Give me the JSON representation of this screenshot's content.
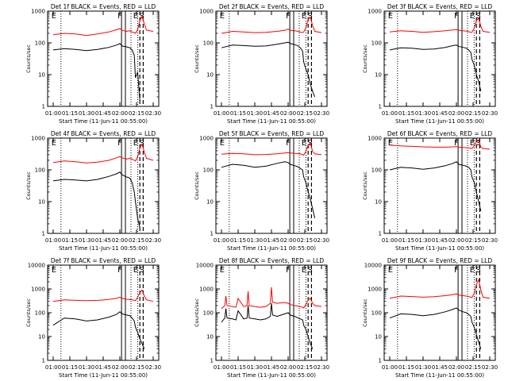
{
  "figure": {
    "ylabel": "Counts/sec",
    "xlabel": "Start Time (11-Jun-11 00:55:00)",
    "x_ticks": [
      "01:00",
      "01:15",
      "01:30",
      "01:45",
      "02:00",
      "02:15",
      "02:30"
    ],
    "x_tick_minutes": [
      60,
      75,
      90,
      105,
      120,
      135,
      150
    ],
    "y_tick_labels": [
      "1",
      "10",
      "100",
      "1000",
      "10000"
    ],
    "marker_labels": [
      "E",
      "F",
      "E",
      "S"
    ],
    "series_colors": {
      "events": "#000000",
      "lld": "#ff0000"
    }
  },
  "chart_data": [
    {
      "type": "line",
      "title": "Det 1f BLACK = Events, RED = LLD",
      "yscale": "log",
      "ylim": [
        1,
        1000
      ],
      "x_minutes": [
        60,
        70,
        80,
        90,
        100,
        110,
        117,
        120,
        122,
        126,
        129,
        131,
        133,
        134,
        136,
        138,
        140,
        142,
        144,
        150
      ],
      "series": [
        {
          "name": "Events",
          "values": [
            60,
            66,
            62,
            57,
            62,
            72,
            85,
            95,
            80,
            75,
            70,
            60,
            40,
            8,
            12,
            1.5,
            null,
            null,
            null,
            null
          ]
        },
        {
          "name": "LLD",
          "values": [
            180,
            200,
            190,
            170,
            190,
            220,
            260,
            280,
            250,
            230,
            240,
            220,
            210,
            200,
            260,
            500,
            700,
            400,
            250,
            230
          ]
        }
      ],
      "markers": {
        "solid": [
          121.5,
          125
        ],
        "dotted": [
          67,
          130,
          136
        ],
        "dashed": [
          138,
          141
        ]
      }
    },
    {
      "type": "line",
      "title": "Det 2f BLACK = Events, RED = LLD",
      "yscale": "log",
      "ylim": [
        1,
        1000
      ],
      "x_minutes": [
        60,
        70,
        80,
        90,
        100,
        110,
        117,
        120,
        122,
        126,
        129,
        131,
        133,
        134,
        136,
        138,
        140,
        142,
        144,
        150
      ],
      "series": [
        {
          "name": "Events",
          "values": [
            70,
            85,
            82,
            78,
            80,
            90,
            100,
            105,
            95,
            88,
            80,
            70,
            55,
            25,
            15,
            10,
            5,
            3,
            2,
            null
          ]
        },
        {
          "name": "LLD",
          "values": [
            200,
            230,
            220,
            210,
            215,
            230,
            250,
            270,
            250,
            240,
            230,
            220,
            210,
            220,
            300,
            550,
            650,
            350,
            230,
            210
          ]
        }
      ],
      "markers": {
        "solid": [
          121.5,
          125
        ],
        "dotted": [
          67,
          130,
          136
        ],
        "dashed": [
          138,
          141
        ]
      }
    },
    {
      "type": "line",
      "title": "Det 3f BLACK = Events, RED = LLD",
      "yscale": "log",
      "ylim": [
        1,
        1000
      ],
      "x_minutes": [
        60,
        70,
        80,
        90,
        100,
        110,
        117,
        120,
        122,
        126,
        129,
        131,
        133,
        134,
        136,
        138,
        140,
        142,
        144,
        150
      ],
      "series": [
        {
          "name": "Events",
          "values": [
            60,
            70,
            68,
            62,
            64,
            72,
            82,
            85,
            78,
            72,
            68,
            60,
            50,
            30,
            20,
            10,
            6,
            3,
            null,
            null
          ]
        },
        {
          "name": "LLD",
          "values": [
            220,
            240,
            230,
            215,
            225,
            240,
            255,
            265,
            250,
            240,
            235,
            225,
            215,
            215,
            290,
            500,
            600,
            330,
            230,
            215
          ]
        }
      ],
      "markers": {
        "solid": [
          121.5,
          125
        ],
        "dotted": [
          67,
          130,
          136
        ],
        "dashed": [
          138,
          141
        ]
      }
    },
    {
      "type": "line",
      "title": "Det 4f BLACK = Events, RED = LLD",
      "yscale": "log",
      "ylim": [
        1,
        1000
      ],
      "x_minutes": [
        60,
        70,
        80,
        90,
        100,
        110,
        117,
        120,
        122,
        126,
        129,
        131,
        133,
        134,
        136,
        138,
        140,
        142,
        144,
        150
      ],
      "series": [
        {
          "name": "Events",
          "values": [
            45,
            50,
            48,
            45,
            50,
            62,
            75,
            85,
            70,
            60,
            55,
            40,
            20,
            10,
            3,
            1.5,
            null,
            null,
            null,
            null
          ]
        },
        {
          "name": "LLD",
          "values": [
            170,
            190,
            180,
            165,
            175,
            200,
            240,
            260,
            240,
            220,
            230,
            220,
            200,
            190,
            260,
            480,
            650,
            360,
            230,
            200
          ]
        }
      ],
      "markers": {
        "solid": [
          121.5,
          125
        ],
        "dotted": [
          67,
          130,
          136
        ],
        "dashed": [
          138,
          141
        ]
      }
    },
    {
      "type": "line",
      "title": "Det 5f BLACK = Events, RED = LLD",
      "yscale": "log",
      "ylim": [
        1,
        1000
      ],
      "x_minutes": [
        60,
        70,
        80,
        90,
        100,
        110,
        117,
        120,
        122,
        126,
        129,
        131,
        133,
        134,
        136,
        138,
        140,
        142,
        144,
        150
      ],
      "series": [
        {
          "name": "Events",
          "values": [
            120,
            150,
            140,
            120,
            130,
            160,
            180,
            170,
            150,
            135,
            125,
            110,
            100,
            60,
            40,
            20,
            12,
            6,
            3,
            null
          ]
        },
        {
          "name": "LLD",
          "values": [
            310,
            330,
            320,
            300,
            305,
            320,
            340,
            350,
            340,
            330,
            325,
            320,
            300,
            290,
            380,
            600,
            700,
            380,
            320,
            300
          ]
        }
      ],
      "markers": {
        "solid": [
          121.5,
          125
        ],
        "dotted": [
          67,
          130,
          136
        ],
        "dashed": [
          138,
          141
        ]
      }
    },
    {
      "type": "line",
      "title": "Det 6f BLACK = Events, RED = LLD",
      "yscale": "log",
      "ylim": [
        1,
        1000
      ],
      "x_minutes": [
        60,
        70,
        80,
        90,
        100,
        110,
        117,
        120,
        122,
        126,
        129,
        131,
        133,
        134,
        136,
        138,
        140,
        142,
        144,
        150
      ],
      "series": [
        {
          "name": "Events",
          "values": [
            100,
            120,
            115,
            105,
            115,
            135,
            160,
            180,
            150,
            140,
            130,
            120,
            100,
            60,
            40,
            20,
            10,
            5,
            null,
            null
          ]
        },
        {
          "name": "LLD",
          "values": [
            600,
            570,
            550,
            530,
            520,
            520,
            530,
            540,
            520,
            510,
            500,
            490,
            480,
            470,
            560,
            800,
            850,
            520,
            470,
            450
          ]
        }
      ],
      "markers": {
        "solid": [
          121.5,
          125
        ],
        "dotted": [
          67,
          130,
          136
        ],
        "dashed": [
          138,
          141
        ]
      }
    },
    {
      "type": "line",
      "title": "Det 7f BLACK = Events, RED = LLD",
      "yscale": "log",
      "ylim": [
        1,
        10000
      ],
      "x_minutes": [
        60,
        70,
        80,
        90,
        100,
        110,
        117,
        120,
        122,
        126,
        129,
        131,
        133,
        134,
        136,
        138,
        140,
        142,
        144,
        150
      ],
      "series": [
        {
          "name": "Events",
          "values": [
            30,
            60,
            55,
            45,
            50,
            65,
            85,
            110,
            90,
            80,
            75,
            60,
            45,
            25,
            15,
            8,
            5,
            3,
            null,
            null
          ]
        },
        {
          "name": "LLD",
          "values": [
            300,
            350,
            330,
            320,
            330,
            360,
            400,
            450,
            400,
            370,
            360,
            350,
            330,
            320,
            450,
            700,
            900,
            500,
            350,
            300
          ]
        }
      ],
      "markers": {
        "solid": [
          121.5,
          125
        ],
        "dotted": [
          67,
          130,
          136
        ],
        "dashed": [
          138,
          141
        ]
      }
    },
    {
      "type": "line",
      "title": "Det 8f BLACK = Events, RED = LLD",
      "yscale": "log",
      "ylim": [
        1,
        10000
      ],
      "x_minutes": [
        60,
        63,
        64,
        65,
        70,
        73,
        75,
        80,
        83,
        84,
        85,
        90,
        95,
        100,
        104,
        105,
        106,
        110,
        117,
        120,
        122,
        126,
        129,
        131,
        133,
        134,
        136,
        138,
        140,
        142,
        144,
        150
      ],
      "series": [
        {
          "name": "Events",
          "values": [
            40,
            60,
            150,
            60,
            55,
            50,
            120,
            55,
            60,
            200,
            60,
            55,
            50,
            55,
            70,
            250,
            80,
            70,
            90,
            100,
            80,
            70,
            60,
            55,
            50,
            30,
            20,
            10,
            5,
            3,
            null,
            null
          ]
        },
        {
          "name": "LLD",
          "values": [
            150,
            200,
            500,
            200,
            180,
            170,
            400,
            180,
            200,
            800,
            200,
            180,
            170,
            180,
            250,
            1200,
            280,
            250,
            270,
            250,
            220,
            200,
            190,
            180,
            170,
            160,
            220,
            350,
            400,
            250,
            200,
            180
          ]
        }
      ],
      "markers": {
        "solid": [
          121.5,
          125
        ],
        "dotted": [
          67,
          130,
          136
        ],
        "dashed": [
          138,
          141
        ]
      }
    },
    {
      "type": "line",
      "title": "Det 9f BLACK = Events, RED = LLD",
      "yscale": "log",
      "ylim": [
        1,
        10000
      ],
      "x_minutes": [
        60,
        70,
        80,
        90,
        100,
        110,
        117,
        120,
        122,
        126,
        129,
        131,
        133,
        134,
        136,
        138,
        140,
        142,
        144,
        150
      ],
      "series": [
        {
          "name": "Events",
          "values": [
            60,
            90,
            85,
            75,
            85,
            110,
            140,
            160,
            130,
            110,
            100,
            85,
            70,
            40,
            25,
            12,
            6,
            3,
            null,
            null
          ]
        },
        {
          "name": "LLD",
          "values": [
            400,
            500,
            480,
            450,
            470,
            520,
            580,
            620,
            560,
            520,
            500,
            480,
            450,
            430,
            650,
            1500,
            2500,
            900,
            450,
            400
          ]
        }
      ],
      "markers": {
        "solid": [
          121.5,
          125
        ],
        "dotted": [
          67,
          130,
          136
        ],
        "dashed": [
          138,
          141
        ]
      }
    }
  ]
}
